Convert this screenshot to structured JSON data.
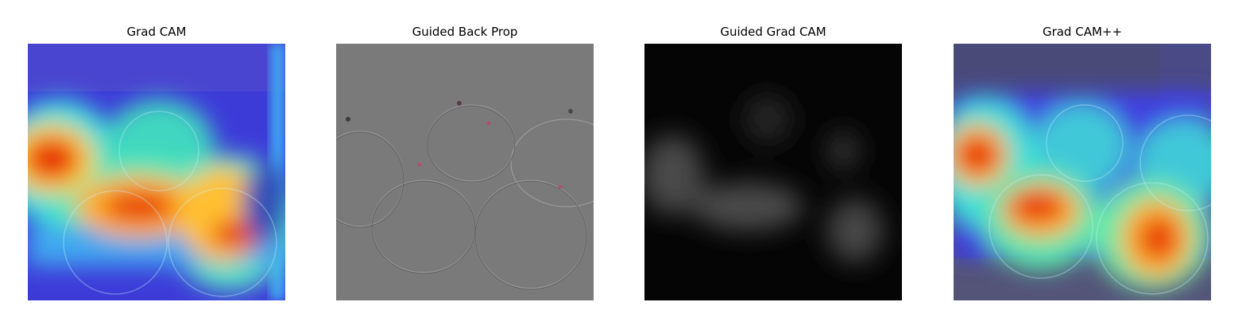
{
  "figure": {
    "panels": [
      {
        "title": "Grad CAM",
        "image": "gradcam-heatmap-overlay-of-pears"
      },
      {
        "title": "Guided Back Prop",
        "image": "guided-backprop-gray-edge-map-of-pears"
      },
      {
        "title": "Guided Grad CAM",
        "image": "guided-gradcam-dark-grayscale-map"
      },
      {
        "title": "Grad CAM++",
        "image": "gradcampp-heatmap-overlay-of-pears"
      }
    ]
  }
}
